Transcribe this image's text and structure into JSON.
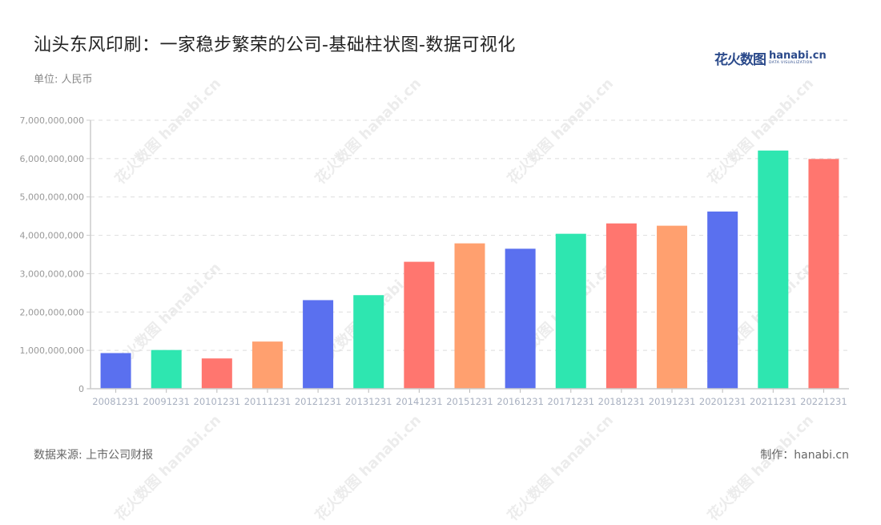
{
  "header": {
    "title": "汕头东风印刷：一家稳步繁荣的公司-基础柱状图-数据可视化",
    "unit": "单位: 人民币"
  },
  "logo": {
    "cn": "花火数图",
    "en": "hanabi.cn",
    "tagline": "DATA VISUALIZATION"
  },
  "footer": {
    "source": "数据来源: 上市公司财报",
    "credit": "制作：hanabi.cn"
  },
  "watermark": "花火数图 hanabi.cn",
  "colors": [
    "#5a70ef",
    "#2ee6b0",
    "#ff766f",
    "#ffa06f"
  ],
  "chart_data": {
    "type": "bar",
    "title": "汕头东风印刷：一家稳步繁荣的公司-基础柱状图-数据可视化",
    "xlabel": "",
    "ylabel": "单位: 人民币",
    "ylim": [
      0,
      7000000000
    ],
    "yticks": [
      "0",
      "1,000,000,000",
      "2,000,000,000",
      "3,000,000,000",
      "4,000,000,000",
      "5,000,000,000",
      "6,000,000,000",
      "7,000,000,000"
    ],
    "grid": true,
    "legend": "none",
    "categories": [
      "20081231",
      "20091231",
      "20101231",
      "20111231",
      "20121231",
      "20131231",
      "20141231",
      "20151231",
      "20161231",
      "20171231",
      "20181231",
      "20191231",
      "20201231",
      "20211231",
      "20221231"
    ],
    "values": [
      930000000,
      1010000000,
      790000000,
      1230000000,
      2310000000,
      2440000000,
      3310000000,
      3790000000,
      3650000000,
      4040000000,
      4310000000,
      4250000000,
      4620000000,
      6210000000,
      5990000000
    ]
  }
}
